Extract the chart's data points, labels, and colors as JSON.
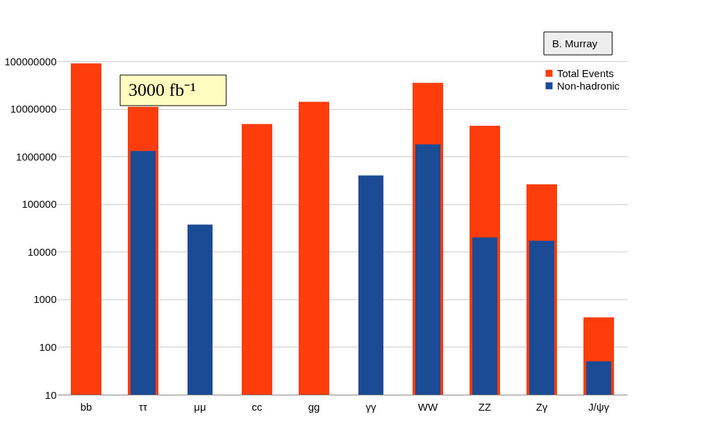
{
  "chart_data": {
    "type": "bar",
    "categories": [
      "bb",
      "ττ",
      "μμ",
      "cc",
      "gg",
      "γγ",
      "WW",
      "ZZ",
      "Zγ",
      "J/ψγ"
    ],
    "series": [
      {
        "name": "Total Events",
        "color": "#fe3d0c",
        "values": [
          90000000,
          11000000,
          null,
          4800000,
          14000000,
          null,
          35000000,
          4400000,
          260000,
          420
        ]
      },
      {
        "name": "Non-hadronic",
        "color": "#1b4b94",
        "values": [
          null,
          1300000,
          37000,
          null,
          null,
          400000,
          1800000,
          20000,
          17000,
          50
        ]
      }
    ],
    "log": "y",
    "ylim": [
      10,
      100000000
    ],
    "yticks": [
      10,
      100,
      1000,
      10000,
      100000,
      1000000,
      10000000,
      100000000
    ],
    "grid": "y",
    "legend": "top right",
    "annotations": [
      "3000 fb⁻¹",
      "B. Murray"
    ]
  }
}
